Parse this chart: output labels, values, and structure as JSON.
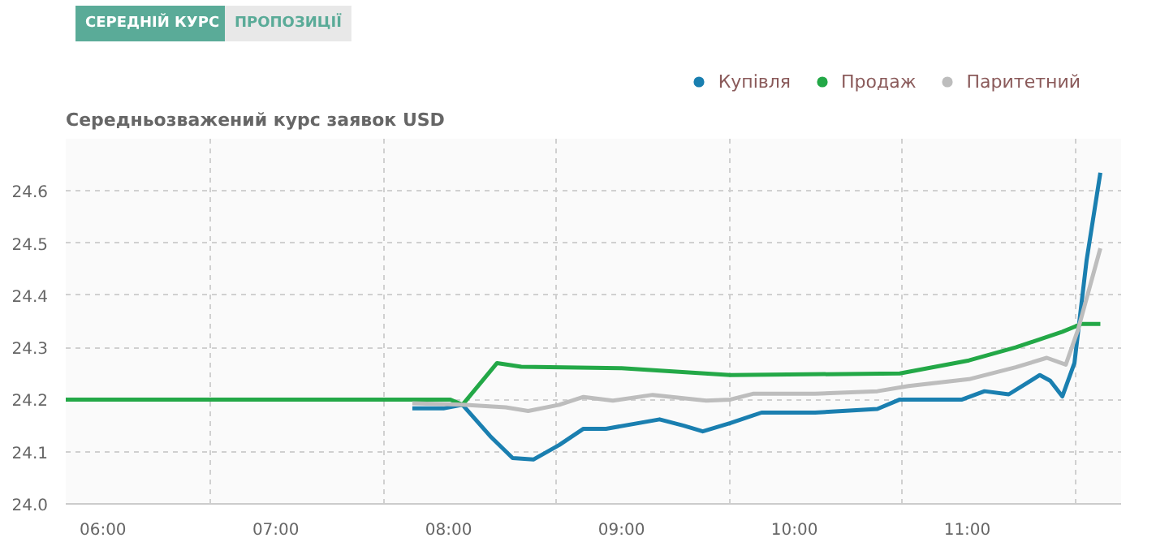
{
  "chart_data": {
    "type": "line",
    "title": "Середньозважений курс заявок USD",
    "annotations": [
      "СЕРЕДНІЙ КУРС",
      "ПРОПОЗИЦІЇ"
    ],
    "xlim": [
      5.785,
      11.89
    ],
    "ylim": [
      24.0,
      24.7
    ],
    "xticks": [
      {
        "value": 6,
        "label": "06:00"
      },
      {
        "value": 6.625,
        "label": null
      },
      {
        "value": 7,
        "label": "07:00"
      },
      {
        "value": 7.625,
        "label": null
      },
      {
        "value": 8,
        "label": "08:00"
      },
      {
        "value": 8.625,
        "label": null
      },
      {
        "value": 9,
        "label": "09:00"
      },
      {
        "value": 9.625,
        "label": null
      },
      {
        "value": 10,
        "label": "10:00"
      },
      {
        "value": 10.625,
        "label": null
      },
      {
        "value": 11,
        "label": "11:00"
      },
      {
        "value": 11.625,
        "label": null
      }
    ],
    "yticks": [
      {
        "value": 24.0,
        "label": "24.0"
      },
      {
        "value": 24.1,
        "label": "24.1"
      },
      {
        "value": 24.2,
        "label": "24.2"
      },
      {
        "value": 24.3,
        "label": "24.3"
      },
      {
        "value": 24.4,
        "label": "24.4"
      },
      {
        "value": 24.5,
        "label": "24.5"
      },
      {
        "value": 24.6,
        "label": "24.6"
      }
    ],
    "grid": true,
    "legend": "top right",
    "marker": "none",
    "line_style": "solid",
    "series": [
      {
        "name": "Купівля",
        "color": "#1a7fb0",
        "x": [
          7.79,
          7.97,
          8.08,
          8.24,
          8.37,
          8.49,
          8.64,
          8.78,
          8.91,
          9.22,
          9.36,
          9.47,
          9.63,
          9.81,
          10.12,
          10.48,
          10.61,
          10.97,
          11.1,
          11.24,
          11.42,
          11.48,
          11.55,
          11.62,
          11.69,
          11.77
        ],
        "values": [
          24.183,
          24.183,
          24.19,
          24.13,
          24.088,
          24.085,
          24.113,
          24.144,
          24.144,
          24.162,
          24.15,
          24.139,
          24.155,
          24.175,
          24.175,
          24.182,
          24.2,
          24.2,
          24.216,
          24.21,
          24.247,
          24.236,
          24.206,
          24.27,
          24.466,
          24.635
        ]
      },
      {
        "name": "Продаж",
        "color": "#23a847",
        "x": [
          5.785,
          8.01,
          8.08,
          8.28,
          8.42,
          9.0,
          9.63,
          10.61,
          11.01,
          11.28,
          11.55,
          11.66,
          11.77
        ],
        "values": [
          24.2,
          24.2,
          24.19,
          24.27,
          24.263,
          24.26,
          24.247,
          24.25,
          24.275,
          24.3,
          24.33,
          24.345,
          24.345
        ]
      },
      {
        "name": "Паритетний",
        "color": "#bdbdbd",
        "x": [
          7.79,
          8.08,
          8.33,
          8.46,
          8.64,
          8.78,
          8.95,
          9.18,
          9.49,
          9.63,
          9.76,
          10.12,
          10.48,
          10.66,
          11.01,
          11.28,
          11.46,
          11.57,
          11.64,
          11.77
        ],
        "values": [
          24.193,
          24.19,
          24.185,
          24.178,
          24.19,
          24.205,
          24.198,
          24.209,
          24.198,
          24.2,
          24.211,
          24.211,
          24.216,
          24.226,
          24.239,
          24.262,
          24.28,
          24.267,
          24.333,
          24.49
        ]
      }
    ]
  }
}
